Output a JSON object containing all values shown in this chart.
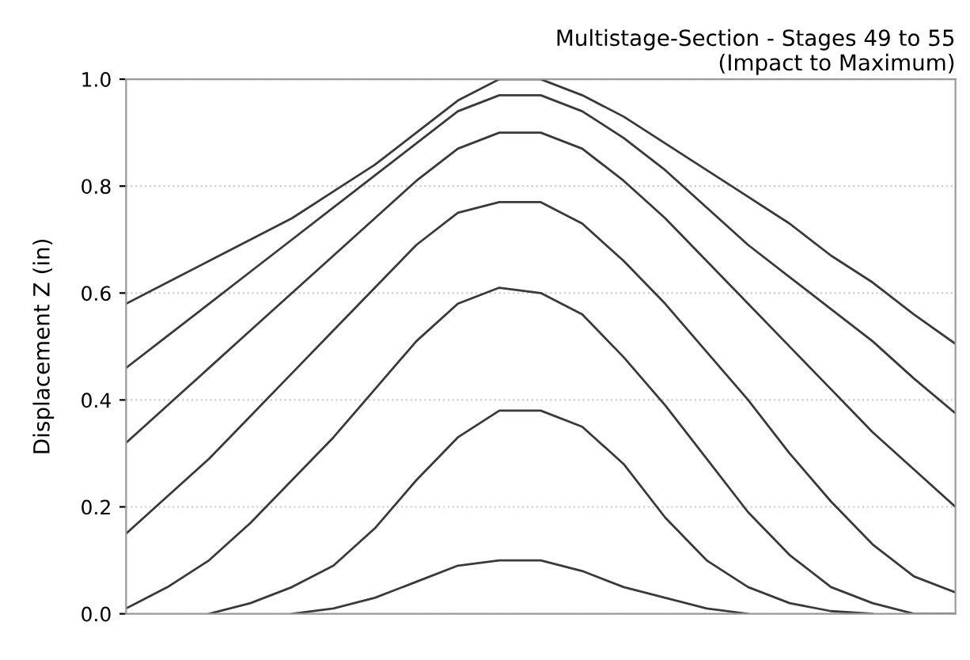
{
  "chart_data": {
    "type": "line",
    "title": "Multistage-Section - Stages 49 to 55\n(Impact to Maximum)",
    "ylabel": "Displacement Z (in)",
    "categories": [
      null,
      null,
      null,
      null,
      null,
      null,
      null,
      null,
      null,
      null,
      null,
      null,
      null,
      null,
      null,
      null,
      null,
      null,
      null,
      null,
      null
    ],
    "series": [
      {
        "color": "#3a3a3a",
        "values": [
          0.58,
          0.62,
          0.66,
          0.7,
          0.74,
          0.79,
          0.84,
          0.9,
          0.96,
          1.0,
          1.0,
          0.97,
          0.93,
          0.88,
          0.83,
          0.78,
          0.73,
          0.67,
          0.62,
          0.56,
          0.505
        ]
      },
      {
        "color": "#3a3a3a",
        "values": [
          0.46,
          0.52,
          0.58,
          0.64,
          0.7,
          0.76,
          0.82,
          0.88,
          0.94,
          0.97,
          0.97,
          0.94,
          0.89,
          0.83,
          0.76,
          0.69,
          0.63,
          0.57,
          0.51,
          0.44,
          0.375
        ]
      },
      {
        "color": "#3a3a3a",
        "values": [
          0.32,
          0.39,
          0.46,
          0.53,
          0.6,
          0.67,
          0.74,
          0.81,
          0.87,
          0.9,
          0.9,
          0.87,
          0.81,
          0.74,
          0.66,
          0.58,
          0.5,
          0.42,
          0.34,
          0.27,
          0.2
        ]
      },
      {
        "color": "#3a3a3a",
        "values": [
          0.15,
          0.22,
          0.29,
          0.37,
          0.45,
          0.53,
          0.61,
          0.69,
          0.75,
          0.77,
          0.77,
          0.73,
          0.66,
          0.58,
          0.49,
          0.4,
          0.3,
          0.21,
          0.13,
          0.07,
          0.04
        ]
      },
      {
        "color": "#3a3a3a",
        "values": [
          0.01,
          0.05,
          0.1,
          0.17,
          0.25,
          0.33,
          0.42,
          0.51,
          0.58,
          0.61,
          0.6,
          0.56,
          0.48,
          0.39,
          0.29,
          0.19,
          0.11,
          0.05,
          0.02,
          0.0,
          0.0
        ]
      },
      {
        "color": "#3a3a3a",
        "values": [
          null,
          null,
          0.0,
          0.02,
          0.05,
          0.09,
          0.16,
          0.25,
          0.33,
          0.38,
          0.38,
          0.35,
          0.28,
          0.18,
          0.1,
          0.05,
          0.02,
          0.005,
          0.0,
          null,
          null
        ]
      },
      {
        "color": "#3a3a3a",
        "values": [
          null,
          null,
          null,
          null,
          0.0,
          0.01,
          0.03,
          0.06,
          0.09,
          0.1,
          0.1,
          0.08,
          0.05,
          0.03,
          0.01,
          0.0,
          null,
          null,
          null,
          null,
          null
        ]
      }
    ],
    "ylim": [
      0,
      1.0
    ],
    "yticks": [
      {
        "value": 0,
        "label": "0.0"
      },
      {
        "value": 0.2,
        "label": "0.2"
      },
      {
        "value": 0.4,
        "label": "0.4"
      },
      {
        "value": 0.6,
        "label": "0.6"
      },
      {
        "value": 0.8,
        "label": "0.8"
      },
      {
        "value": 1.0,
        "label": "1.0"
      }
    ],
    "grid": "y",
    "marker": "none",
    "line_style": "solid",
    "tick_labels": "y"
  }
}
